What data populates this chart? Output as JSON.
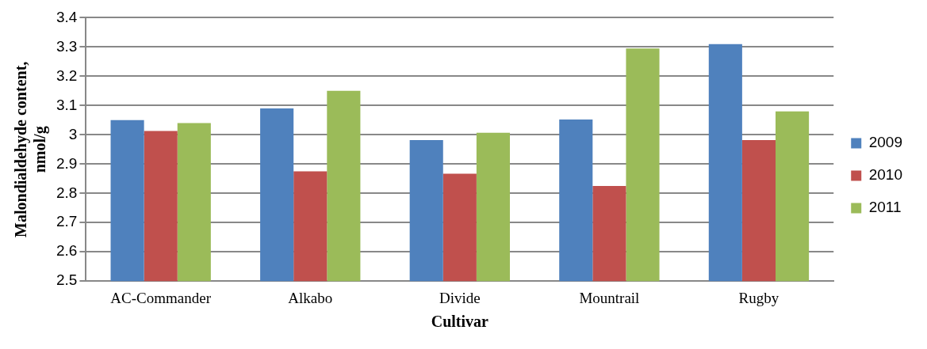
{
  "chart_data": {
    "type": "bar",
    "xlabel": "Cultivar",
    "ylabel": "Malondialdehyde content, nmol/g",
    "categories": [
      "AC-Commander",
      "Alkabo",
      "Divide",
      "Mountrail",
      "Rugby"
    ],
    "series": [
      {
        "name": "2009",
        "color": "#4f81bd",
        "values": [
          3.05,
          3.09,
          2.982,
          3.052,
          3.31
        ]
      },
      {
        "name": "2010",
        "color": "#c0504d",
        "values": [
          3.013,
          2.875,
          2.867,
          2.825,
          2.982
        ]
      },
      {
        "name": "2011",
        "color": "#9bbb59",
        "values": [
          3.04,
          3.15,
          3.007,
          3.295,
          3.08
        ]
      }
    ],
    "ylim": [
      2.5,
      3.4
    ],
    "yticks": [
      2.5,
      2.6,
      2.7,
      2.8,
      2.9,
      3,
      3.1,
      3.2,
      3.3,
      3.4
    ],
    "grid": "y",
    "legend": "right"
  }
}
